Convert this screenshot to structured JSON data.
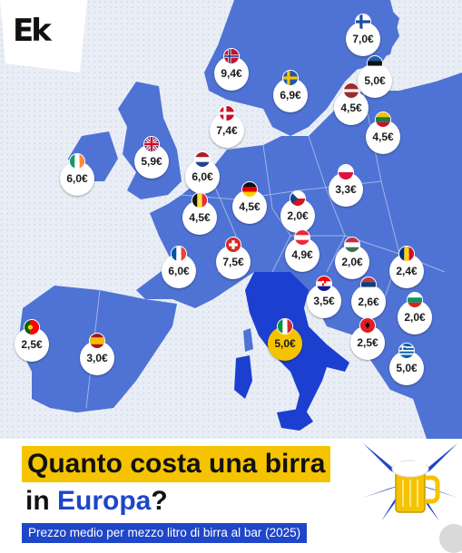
{
  "brand": {
    "logo_text": "Ek"
  },
  "title": {
    "line1": "Quanto costa una birra",
    "line2_prefix": "in ",
    "line2_highlight": "Europa",
    "line2_suffix": "?"
  },
  "subtitle": "Prezzo medio per mezzo litro di birra al bar (2025)",
  "colors": {
    "land": "#4f73d4",
    "highlight_land": "#1d3fd0",
    "sea": "#e9eef6",
    "highlight_badge": "#f5c300",
    "accent": "#1f46c8"
  },
  "markers": [
    {
      "country": "Finlandia",
      "price": "7,0€",
      "flag": "finland",
      "highlight": false
    },
    {
      "country": "Norvegia",
      "price": "9,4€",
      "flag": "norway",
      "highlight": false
    },
    {
      "country": "Estonia",
      "price": "5,0€",
      "flag": "estonia",
      "highlight": false
    },
    {
      "country": "Svezia",
      "price": "6,9€",
      "flag": "sweden",
      "highlight": false
    },
    {
      "country": "Lettonia",
      "price": "4,5€",
      "flag": "latvia",
      "highlight": false
    },
    {
      "country": "Lituania",
      "price": "4,5€",
      "flag": "lithuania",
      "highlight": false
    },
    {
      "country": "Danimarca",
      "price": "7,4€",
      "flag": "denmark",
      "highlight": false
    },
    {
      "country": "Regno Unito",
      "price": "5,9€",
      "flag": "uk",
      "highlight": false
    },
    {
      "country": "Irlanda",
      "price": "6,0€",
      "flag": "ireland",
      "highlight": false
    },
    {
      "country": "Paesi Bassi",
      "price": "6,0€",
      "flag": "netherlands",
      "highlight": false
    },
    {
      "country": "Polonia",
      "price": "3,3€",
      "flag": "poland",
      "highlight": false
    },
    {
      "country": "Germania",
      "price": "4,5€",
      "flag": "germany",
      "highlight": false
    },
    {
      "country": "Belgio",
      "price": "4,5€",
      "flag": "belgium",
      "highlight": false
    },
    {
      "country": "Repubblica Ceca",
      "price": "2,0€",
      "flag": "czechia",
      "highlight": false
    },
    {
      "country": "Francia",
      "price": "6,0€",
      "flag": "france",
      "highlight": false
    },
    {
      "country": "Svizzera",
      "price": "7,5€",
      "flag": "switzerland",
      "highlight": false
    },
    {
      "country": "Austria",
      "price": "4,9€",
      "flag": "austria",
      "highlight": false
    },
    {
      "country": "Ungheria",
      "price": "2,0€",
      "flag": "hungary",
      "highlight": false
    },
    {
      "country": "Romania",
      "price": "2,4€",
      "flag": "romania",
      "highlight": false
    },
    {
      "country": "Croazia",
      "price": "3,5€",
      "flag": "croatia",
      "highlight": false
    },
    {
      "country": "Serbia",
      "price": "2,6€",
      "flag": "serbia",
      "highlight": false
    },
    {
      "country": "Bulgaria",
      "price": "2,0€",
      "flag": "bulgaria",
      "highlight": false
    },
    {
      "country": "Portogallo",
      "price": "2,5€",
      "flag": "portugal",
      "highlight": false
    },
    {
      "country": "Spagna",
      "price": "3,0€",
      "flag": "spain",
      "highlight": false
    },
    {
      "country": "Italia",
      "price": "5,0€",
      "flag": "italy",
      "highlight": true
    },
    {
      "country": "Albania",
      "price": "2,5€",
      "flag": "albania",
      "highlight": false
    },
    {
      "country": "Grecia",
      "price": "5,0€",
      "flag": "greece",
      "highlight": false
    }
  ]
}
